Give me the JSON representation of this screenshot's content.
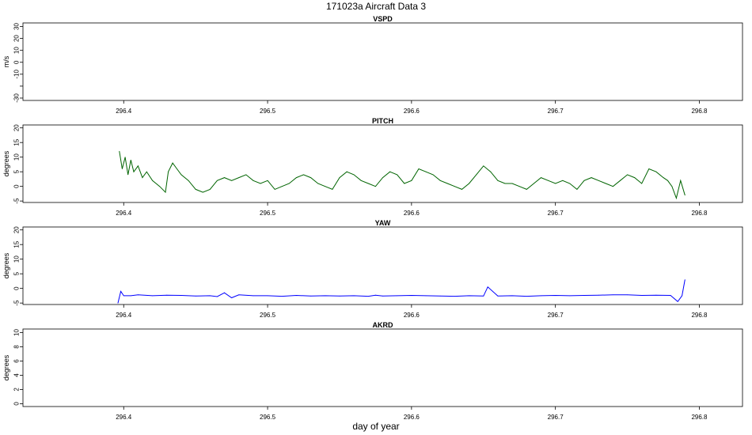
{
  "title": "171023a   Aircraft Data 3",
  "xlabel": "day of year",
  "chart_data": [
    {
      "type": "line",
      "title": "VSPD",
      "xlabel": "",
      "ylabel": "m/s",
      "color": "#006400",
      "xlim": [
        296.33,
        296.83
      ],
      "ylim": [
        -32,
        33
      ],
      "xticks": [
        "296.4",
        "296.5",
        "296.6",
        "296.7",
        "296.8"
      ],
      "yticks": [
        "-30",
        "",
        "-10",
        "0",
        "10",
        "20",
        "30"
      ],
      "x": [],
      "series": [
        {
          "values": []
        }
      ],
      "grid": false
    },
    {
      "type": "line",
      "title": "PITCH",
      "xlabel": "",
      "ylabel": "degrees",
      "color": "#006400",
      "xlim": [
        296.33,
        296.83
      ],
      "ylim": [
        -5.5,
        21
      ],
      "xticks": [
        "296.4",
        "296.5",
        "296.6",
        "296.7",
        "296.8"
      ],
      "yticks": [
        "-5",
        "0",
        "5",
        "10",
        "15",
        "20"
      ],
      "x": [
        296.397,
        296.399,
        296.401,
        296.403,
        296.405,
        296.407,
        296.41,
        296.413,
        296.416,
        296.42,
        296.425,
        296.429,
        296.431,
        296.434,
        296.437,
        296.44,
        296.445,
        296.45,
        296.455,
        296.46,
        296.465,
        296.47,
        296.475,
        296.48,
        296.485,
        296.49,
        296.495,
        296.5,
        296.505,
        296.51,
        296.515,
        296.52,
        296.525,
        296.53,
        296.535,
        296.54,
        296.545,
        296.55,
        296.555,
        296.56,
        296.565,
        296.57,
        296.575,
        296.58,
        296.585,
        296.59,
        296.595,
        296.6,
        296.605,
        296.61,
        296.615,
        296.62,
        296.625,
        296.63,
        296.635,
        296.64,
        296.645,
        296.65,
        296.655,
        296.66,
        296.665,
        296.67,
        296.675,
        296.68,
        296.685,
        296.69,
        296.695,
        296.7,
        296.705,
        296.71,
        296.715,
        296.72,
        296.725,
        296.73,
        296.735,
        296.74,
        296.745,
        296.75,
        296.755,
        296.76,
        296.765,
        296.77,
        296.775,
        296.778,
        296.781,
        296.784,
        296.787,
        296.79
      ],
      "series": [
        {
          "name": "",
          "values": [
            12,
            6,
            10,
            4,
            9,
            5,
            7,
            3,
            5,
            2,
            0,
            -2,
            5,
            8,
            6,
            4,
            2,
            -1,
            -2,
            -1,
            2,
            3,
            2,
            3,
            4,
            2,
            1,
            2,
            -1,
            0,
            1,
            3,
            4,
            3,
            1,
            0,
            -1,
            3,
            5,
            4,
            2,
            1,
            0,
            3,
            5,
            4,
            1,
            2,
            6,
            5,
            4,
            2,
            1,
            0,
            -1,
            1,
            4,
            7,
            5,
            2,
            1,
            1,
            0,
            -1,
            1,
            3,
            2,
            1,
            2,
            1,
            -1,
            2,
            3,
            2,
            1,
            0,
            2,
            4,
            3,
            1,
            6,
            5,
            3,
            2,
            0,
            -4,
            2,
            -3
          ]
        }
      ],
      "grid": false
    },
    {
      "type": "line",
      "title": "YAW",
      "xlabel": "",
      "ylabel": "degrees",
      "color": "#0000ff",
      "xlim": [
        296.33,
        296.83
      ],
      "ylim": [
        -5.5,
        21
      ],
      "xticks": [
        "296.4",
        "296.5",
        "296.6",
        "296.7",
        "296.8"
      ],
      "yticks": [
        "-5",
        "0",
        "5",
        "10",
        "15",
        "20"
      ],
      "x": [
        296.396,
        296.398,
        296.4,
        296.405,
        296.41,
        296.42,
        296.43,
        296.44,
        296.45,
        296.46,
        296.465,
        296.47,
        296.475,
        296.48,
        296.49,
        296.5,
        296.51,
        296.52,
        296.53,
        296.54,
        296.55,
        296.56,
        296.57,
        296.575,
        296.58,
        296.59,
        296.6,
        296.61,
        296.62,
        296.63,
        296.64,
        296.65,
        296.653,
        296.66,
        296.67,
        296.68,
        296.69,
        296.7,
        296.71,
        296.72,
        296.73,
        296.74,
        296.75,
        296.76,
        296.77,
        296.78,
        296.785,
        296.788,
        296.79
      ],
      "series": [
        {
          "name": "",
          "values": [
            -5,
            -1,
            -2.5,
            -2.5,
            -2.2,
            -2.5,
            -2.3,
            -2.4,
            -2.6,
            -2.5,
            -2.8,
            -1.5,
            -3.2,
            -2.2,
            -2.5,
            -2.5,
            -2.7,
            -2.4,
            -2.6,
            -2.5,
            -2.6,
            -2.5,
            -2.7,
            -2.3,
            -2.6,
            -2.5,
            -2.4,
            -2.5,
            -2.6,
            -2.7,
            -2.5,
            -2.6,
            0.5,
            -2.6,
            -2.5,
            -2.7,
            -2.5,
            -2.4,
            -2.5,
            -2.4,
            -2.3,
            -2.2,
            -2.2,
            -2.4,
            -2.3,
            -2.4,
            -4.5,
            -2.5,
            3
          ]
        }
      ],
      "grid": false
    },
    {
      "type": "line",
      "title": "AKRD",
      "xlabel": "",
      "ylabel": "degrees",
      "color": "#006400",
      "xlim": [
        296.33,
        296.83
      ],
      "ylim": [
        -0.4,
        10.5
      ],
      "xticks": [
        "296.4",
        "296.5",
        "296.6",
        "296.7",
        "296.8"
      ],
      "yticks": [
        "0",
        "2",
        "4",
        "6",
        "8",
        "10"
      ],
      "x": [],
      "series": [
        {
          "values": []
        }
      ],
      "grid": false
    }
  ]
}
